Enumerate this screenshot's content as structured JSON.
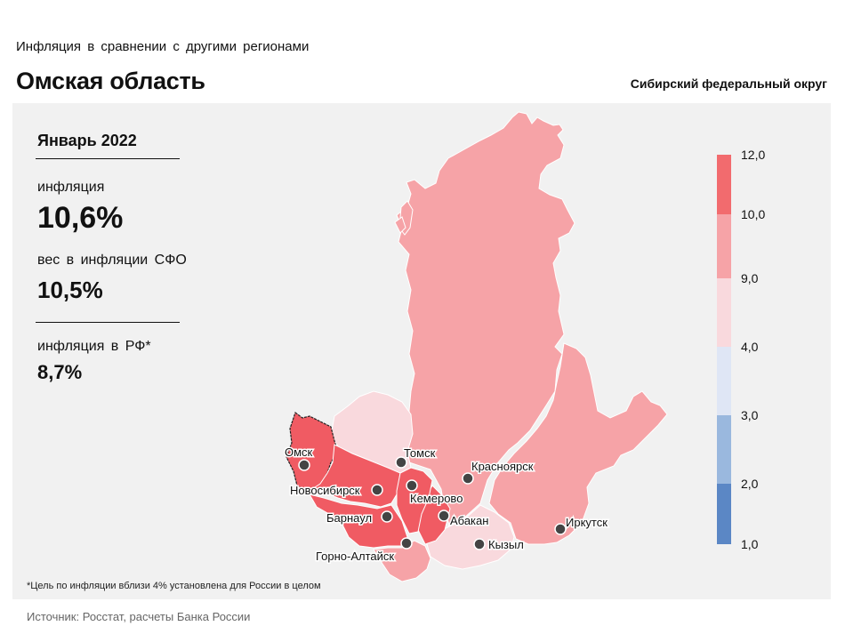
{
  "header": {
    "subtitle": "Инфляция в сравнении с другими регионами",
    "region_title": "Омская область",
    "district": "Сибирский федеральный округ"
  },
  "stats": {
    "period": "Январь 2022",
    "inflation_label": "инфляция",
    "inflation_value": "10,6%",
    "weight_label": "вес в инфляции СФО",
    "weight_value": "10,5%",
    "rf_label": "инфляция в РФ*",
    "rf_value": "8,7%"
  },
  "legend": {
    "ticks": [
      "12,0",
      "10,0",
      "9,0",
      "4,0",
      "3,0",
      "2,0",
      "1,0"
    ],
    "bins": [
      {
        "from": 10.0,
        "to": 12.0,
        "color": "#f26b6e"
      },
      {
        "from": 9.0,
        "to": 10.0,
        "color": "#f6a3a7"
      },
      {
        "from": 4.0,
        "to": 9.0,
        "color": "#f9d9dd"
      },
      {
        "from": 3.0,
        "to": 4.0,
        "color": "#dfe6f5"
      },
      {
        "from": 2.0,
        "to": 3.0,
        "color": "#9ab8de"
      },
      {
        "from": 1.0,
        "to": 2.0,
        "color": "#5b87c5"
      }
    ]
  },
  "map": {
    "colors": {
      "high": "#f05b63",
      "mid": "#f6a3a7",
      "low": "#f9d9dd"
    },
    "cities": {
      "omsk": "Омск",
      "tomsk": "Томск",
      "novosibirsk": "Новосибирск",
      "kemerovo": "Кемерово",
      "krasnoyarsk": "Красноярск",
      "barnaul": "Барнаул",
      "abakan": "Абакан",
      "gorno": "Горно-Алтайск",
      "kyzyl": "Кызыл",
      "irkutsk": "Иркутск"
    }
  },
  "footnote": "*Цель по инфляции вблизи 4% установлена для России в целом",
  "source": "Источник: Росстат, расчеты Банка России"
}
